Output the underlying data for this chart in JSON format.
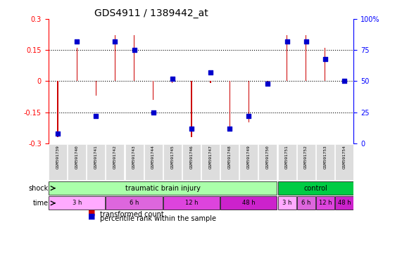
{
  "title": "GDS4911 / 1389442_at",
  "samples": [
    "GSM591739",
    "GSM591740",
    "GSM591741",
    "GSM591742",
    "GSM591743",
    "GSM591744",
    "GSM591745",
    "GSM591746",
    "GSM591747",
    "GSM591748",
    "GSM591749",
    "GSM591750",
    "GSM591751",
    "GSM591752",
    "GSM591753",
    "GSM591754"
  ],
  "transformed_count": [
    -0.27,
    0.16,
    -0.07,
    0.22,
    0.22,
    -0.09,
    -0.01,
    -0.27,
    -0.01,
    -0.23,
    -0.2,
    -0.01,
    0.22,
    0.22,
    0.16,
    0.01
  ],
  "percentile_rank": [
    8,
    82,
    22,
    82,
    75,
    25,
    52,
    12,
    57,
    12,
    22,
    48,
    82,
    82,
    68,
    50
  ],
  "ylim_left": [
    -0.3,
    0.3
  ],
  "ylim_right": [
    0,
    100
  ],
  "yticks_left": [
    -0.3,
    -0.15,
    0,
    0.15,
    0.3
  ],
  "yticks_right": [
    0,
    25,
    50,
    75,
    100
  ],
  "ytick_labels_left": [
    "-0.3",
    "-0.15",
    "0",
    "0.15",
    "0.3"
  ],
  "ytick_labels_right": [
    "0",
    "25",
    "50",
    "75",
    "100%"
  ],
  "hlines": [
    -0.15,
    0,
    0.15
  ],
  "bar_color": "#cc0000",
  "dot_color": "#0000cc",
  "shock_groups": [
    {
      "label": "traumatic brain injury",
      "start": 0,
      "end": 12,
      "color": "#aaffaa"
    },
    {
      "label": "control",
      "start": 12,
      "end": 16,
      "color": "#00cc44"
    }
  ],
  "time_groups": [
    {
      "label": "3 h",
      "start": 0,
      "end": 3,
      "color": "#ffaaff"
    },
    {
      "label": "6 h",
      "start": 3,
      "end": 6,
      "color": "#dd66dd"
    },
    {
      "label": "12 h",
      "start": 6,
      "end": 9,
      "color": "#dd44dd"
    },
    {
      "label": "48 h",
      "start": 9,
      "end": 12,
      "color": "#cc22cc"
    },
    {
      "label": "3 h",
      "start": 12,
      "end": 13,
      "color": "#ffaaff"
    },
    {
      "label": "6 h",
      "start": 13,
      "end": 14,
      "color": "#dd66dd"
    },
    {
      "label": "12 h",
      "start": 14,
      "end": 15,
      "color": "#dd44dd"
    },
    {
      "label": "48 h",
      "start": 15,
      "end": 16,
      "color": "#cc22cc"
    }
  ],
  "shock_label": "shock",
  "time_label": "time",
  "legend_bar_label": "transformed count",
  "legend_dot_label": "percentile rank within the sample",
  "bg_color": "#ffffff",
  "grid_color": "#888888",
  "sample_bg": "#dddddd"
}
